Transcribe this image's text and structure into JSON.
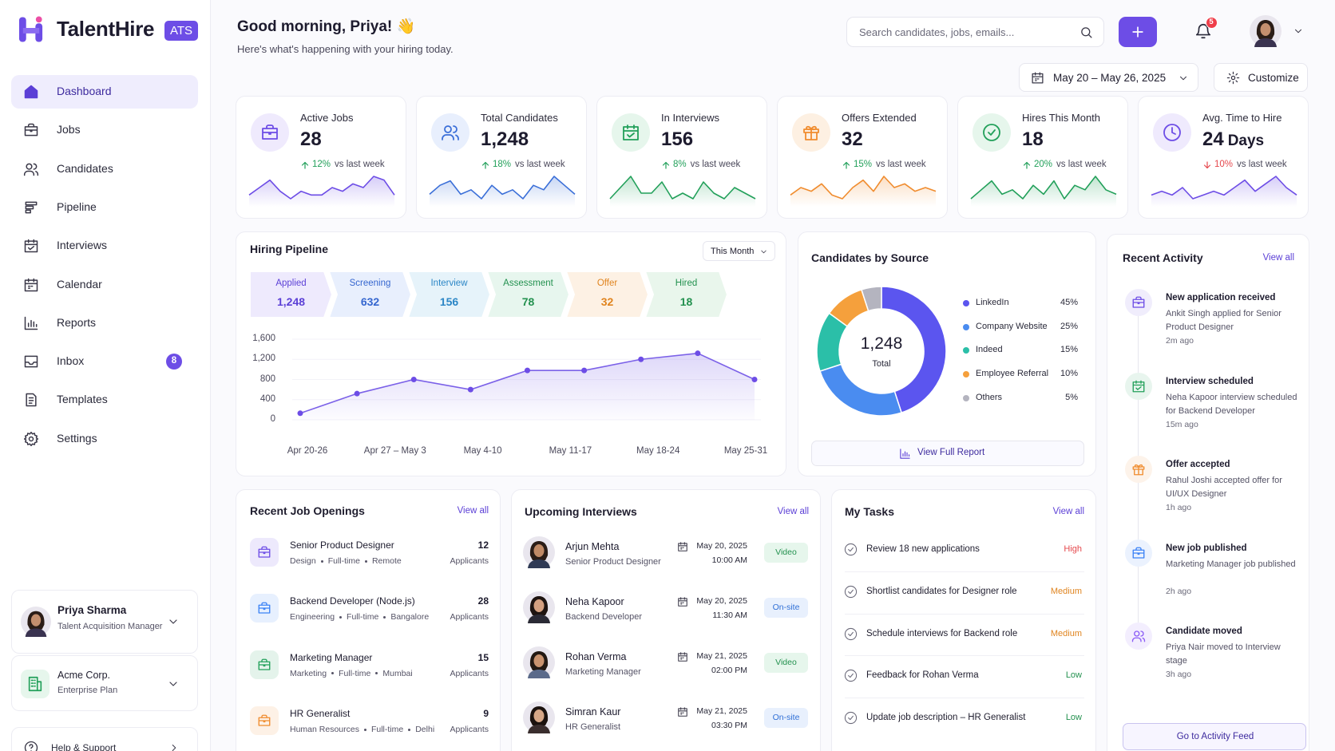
{
  "brand": {
    "name": "TalentHire",
    "badge": "ATS"
  },
  "nav": [
    {
      "label": "Dashboard",
      "active": true
    },
    {
      "label": "Jobs"
    },
    {
      "label": "Candidates"
    },
    {
      "label": "Pipeline"
    },
    {
      "label": "Interviews"
    },
    {
      "label": "Calendar"
    },
    {
      "label": "Reports"
    },
    {
      "label": "Inbox",
      "badge": 8
    },
    {
      "label": "Templates"
    },
    {
      "label": "Settings"
    }
  ],
  "user": {
    "name": "Priya Sharma",
    "role": "Talent Acquisition Manager"
  },
  "org": {
    "name": "Acme Corp.",
    "plan": "Enterprise Plan"
  },
  "help": "Help & Support",
  "header": {
    "greeting": "Good morning, Priya! 👋",
    "subtitle": "Here's what's happening with your hiring today.",
    "search_placeholder": "Search candidates, jobs, emails...",
    "notifications": 5,
    "date_range": "May 20 – May 26, 2025",
    "customize": "Customize"
  },
  "stats": [
    {
      "label": "Active Jobs",
      "value": "28",
      "change": "12%",
      "change_text": "vs last week",
      "direction": "up",
      "change_color": "#22a05a",
      "color": "#6d4de6",
      "bg": "#efeafd",
      "trend": [
        3,
        5,
        7,
        4,
        2,
        4,
        3,
        3,
        5,
        4,
        6,
        5,
        8,
        7,
        3
      ]
    },
    {
      "label": "Total Candidates",
      "value": "1,248",
      "change": "18%",
      "change_text": "vs last week",
      "direction": "up",
      "change_color": "#22a05a",
      "color": "#3b6fd8",
      "bg": "#e8effd",
      "trend": [
        3,
        5,
        6,
        3,
        4,
        2,
        5,
        3,
        4,
        2,
        5,
        4,
        7,
        5,
        3
      ]
    },
    {
      "label": "In Interviews",
      "value": "156",
      "change": "8%",
      "change_text": "vs last week",
      "direction": "up",
      "change_color": "#22a05a",
      "color": "#22a05a",
      "bg": "#e6f6ec",
      "trend": [
        3,
        5,
        7,
        4,
        4,
        6,
        3,
        4,
        3,
        6,
        4,
        3,
        5,
        4,
        3
      ]
    },
    {
      "label": "Offers Extended",
      "value": "32",
      "change": "15%",
      "change_text": "vs last week",
      "direction": "up",
      "change_color": "#22a05a",
      "color": "#f08c2e",
      "bg": "#fdf0e2",
      "trend": [
        3,
        5,
        4,
        6,
        3,
        2,
        5,
        7,
        4,
        8,
        5,
        6,
        4,
        5,
        4
      ]
    },
    {
      "label": "Hires This Month",
      "value": "18",
      "change": "20%",
      "change_text": "vs last week",
      "direction": "up",
      "change_color": "#22a05a",
      "color": "#22a05a",
      "bg": "#e6f6ec",
      "trend": [
        3,
        5,
        7,
        4,
        5,
        3,
        6,
        4,
        7,
        3,
        6,
        5,
        8,
        5,
        4
      ]
    },
    {
      "label": "Avg. Time to Hire",
      "value": "24",
      "unit": "Days",
      "change": "10%",
      "change_text": "vs last week",
      "direction": "down",
      "change_color": "#e5484d",
      "color": "#6d4de6",
      "bg": "#efeafd",
      "trend": [
        3,
        4,
        3,
        5,
        2,
        3,
        4,
        3,
        5,
        7,
        4,
        6,
        8,
        5,
        3
      ]
    }
  ],
  "pipeline": {
    "title": "Hiring Pipeline",
    "period": "This Month",
    "stages": [
      {
        "label": "Applied",
        "count": "1,248",
        "color": "#5b3fd6",
        "bg": "#eeeafd"
      },
      {
        "label": "Screening",
        "count": "632",
        "color": "#3566cf",
        "bg": "#e8effd"
      },
      {
        "label": "Interview",
        "count": "156",
        "color": "#2b86c6",
        "bg": "#e6f3fa"
      },
      {
        "label": "Assessment",
        "count": "78",
        "color": "#23914f",
        "bg": "#e7f6ee"
      },
      {
        "label": "Offer",
        "count": "32",
        "color": "#e0841f",
        "bg": "#fdf1e4"
      },
      {
        "label": "Hired",
        "count": "18",
        "color": "#23914f",
        "bg": "#e9f6ec"
      }
    ],
    "chart": {
      "type": "area",
      "values": [
        130,
        520,
        800,
        600,
        980,
        980,
        1200,
        1320,
        800
      ],
      "color": "#7b61e8",
      "ylim": [
        0,
        1600
      ],
      "yticks": [
        0,
        400,
        800,
        {
          "value": 1200,
          "label": "1,200"
        },
        {
          "value": 1600,
          "label": "1,600"
        }
      ],
      "x_labels": [
        "Apr 20-26",
        "Apr 27 – May 3",
        "May 4-10",
        "May 11-17",
        "May 18-24",
        "May 25-31"
      ]
    }
  },
  "sources": {
    "title": "Candidates by Source",
    "total": "1,248",
    "total_label": "Total",
    "items": [
      {
        "name": "LinkedIn",
        "value": 45,
        "label": "45%",
        "color": "#5b55ef"
      },
      {
        "name": "Company Website",
        "value": 25,
        "label": "25%",
        "color": "#4a8cf0"
      },
      {
        "name": "Indeed",
        "value": 15,
        "label": "15%",
        "color": "#2bbfa8"
      },
      {
        "name": "Employee Referral",
        "value": 10,
        "label": "10%",
        "color": "#f5a03c"
      },
      {
        "name": "Others",
        "value": 5,
        "label": "5%",
        "color": "#b4b4bf"
      }
    ],
    "button": "View Full Report"
  },
  "activity": {
    "title": "Recent Activity",
    "view_all": "View all",
    "items": [
      {
        "title": "New application received",
        "desc": "Ankit Singh applied for Senior Product Designer",
        "time": "2m ago",
        "color": "#6d4de6"
      },
      {
        "title": "Interview scheduled",
        "desc": "Neha Kapoor interview scheduled for Backend Developer",
        "time": "15m ago",
        "color": "#22a05a"
      },
      {
        "title": "Offer accepted",
        "desc": "Rahul Joshi accepted offer for UI/UX Designer",
        "time": "1h ago",
        "color": "#f08c2e"
      },
      {
        "title": "New job published",
        "desc": "Marketing Manager job published",
        "time": "2h ago",
        "color": "#3b82f6"
      },
      {
        "title": "Candidate moved",
        "desc": "Priya Nair moved to Interview stage",
        "time": "3h ago",
        "color": "#8b5cf6"
      }
    ],
    "button": "Go to Activity Feed"
  },
  "jobs": {
    "title": "Recent Job Openings",
    "view_all": "View all",
    "items": [
      {
        "title": "Senior Product Designer",
        "tags": [
          "Design",
          "Full-time",
          "Remote"
        ],
        "count": "12",
        "count_label": "Applicants",
        "color": "#6d4de6"
      },
      {
        "title": "Backend Developer (Node.js)",
        "tags": [
          "Engineering",
          "Full-time",
          "Bangalore"
        ],
        "count": "28",
        "count_label": "Applicants",
        "color": "#3b82f6"
      },
      {
        "title": "Marketing Manager",
        "tags": [
          "Marketing",
          "Full-time",
          "Mumbai"
        ],
        "count": "15",
        "count_label": "Applicants",
        "color": "#22a05a"
      },
      {
        "title": "HR Generalist",
        "tags": [
          "Human Resources",
          "Full-time",
          "Delhi"
        ],
        "count": "9",
        "count_label": "Applicants",
        "color": "#f08c2e"
      }
    ]
  },
  "interviews": {
    "title": "Upcoming Interviews",
    "view_all": "View all",
    "items": [
      {
        "name": "Arjun Mehta",
        "role": "Senior Product Designer",
        "date": "May 20, 2025",
        "time": "10:00 AM",
        "mode": "Video",
        "mode_color": "#23914f",
        "mode_bg": "#e6f6ec"
      },
      {
        "name": "Neha Kapoor",
        "role": "Backend Developer",
        "date": "May 20, 2025",
        "time": "11:30 AM",
        "mode": "On-site",
        "mode_color": "#2f6fd6",
        "mode_bg": "#e8f0fd"
      },
      {
        "name": "Rohan Verma",
        "role": "Marketing Manager",
        "date": "May 21, 2025",
        "time": "02:00 PM",
        "mode": "Video",
        "mode_color": "#23914f",
        "mode_bg": "#e6f6ec"
      },
      {
        "name": "Simran Kaur",
        "role": "HR Generalist",
        "date": "May 21, 2025",
        "time": "03:30 PM",
        "mode": "On-site",
        "mode_color": "#2f6fd6",
        "mode_bg": "#e8f0fd"
      }
    ]
  },
  "tasks": {
    "title": "My Tasks",
    "view_all": "View all",
    "items": [
      {
        "text": "Review 18 new applications",
        "priority": "High",
        "priority_color": "#e5484d"
      },
      {
        "text": "Shortlist candidates for Designer role",
        "priority": "Medium",
        "priority_color": "#e0841f"
      },
      {
        "text": "Schedule interviews for Backend role",
        "priority": "Medium",
        "priority_color": "#e0841f"
      },
      {
        "text": "Feedback for Rohan Verma",
        "priority": "Low",
        "priority_color": "#23914f"
      },
      {
        "text": "Update job description – HR Generalist",
        "priority": "Low",
        "priority_color": "#23914f"
      }
    ]
  }
}
